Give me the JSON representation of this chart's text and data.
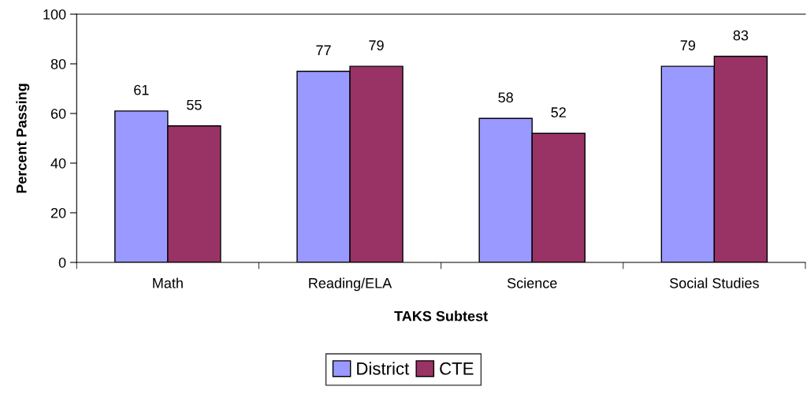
{
  "chart_data": {
    "type": "bar",
    "xlabel": "TAKS Subtest",
    "ylabel": "Percent Passing",
    "categories": [
      "Math",
      "Reading/ELA",
      "Science",
      "Social Studies"
    ],
    "series": [
      {
        "name": "District",
        "color": "#9999ff",
        "values": [
          61,
          77,
          58,
          79
        ]
      },
      {
        "name": "CTE",
        "color": "#993366",
        "values": [
          55,
          79,
          52,
          83
        ]
      }
    ],
    "ylim": [
      0,
      100
    ],
    "yticks": [
      0,
      20,
      40,
      60,
      80,
      100
    ],
    "grid": false,
    "legend": "bottom",
    "data_labels": true
  }
}
